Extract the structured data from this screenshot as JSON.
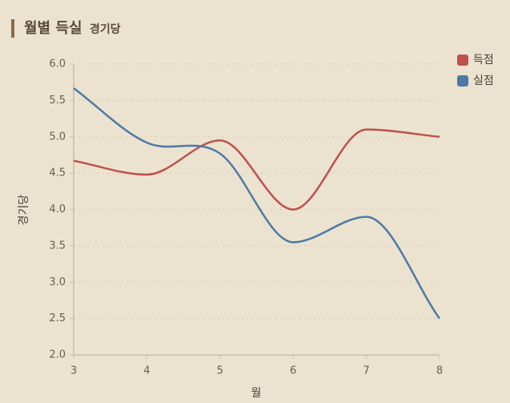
{
  "chart_data": {
    "type": "line",
    "title": "월별 득실",
    "subtitle": "경기당",
    "x_label": "월",
    "y_label": "경기당",
    "x": [
      3,
      4,
      5,
      6,
      7,
      8
    ],
    "series": [
      {
        "name": "득점",
        "color": "#c0504d",
        "values": [
          4.67,
          4.48,
          4.95,
          4.0,
          5.1,
          5.0
        ]
      },
      {
        "name": "실점",
        "color": "#4e79a7",
        "values": [
          5.67,
          4.92,
          4.77,
          3.55,
          3.9,
          2.5
        ]
      }
    ],
    "xlim": [
      3,
      8
    ],
    "xticks": [
      3,
      4,
      5,
      6,
      7,
      8
    ],
    "ylim": [
      2,
      6
    ],
    "yticks": [
      {
        "value": 2,
        "label": "2.0"
      },
      2.5,
      {
        "value": 3,
        "label": "3.0"
      },
      3.5,
      {
        "value": 4,
        "label": "4.0"
      },
      4.5,
      {
        "value": 5,
        "label": "5.0"
      },
      5.5,
      {
        "value": 6,
        "label": "6.0"
      }
    ],
    "grid": true,
    "legend": "top-right"
  }
}
